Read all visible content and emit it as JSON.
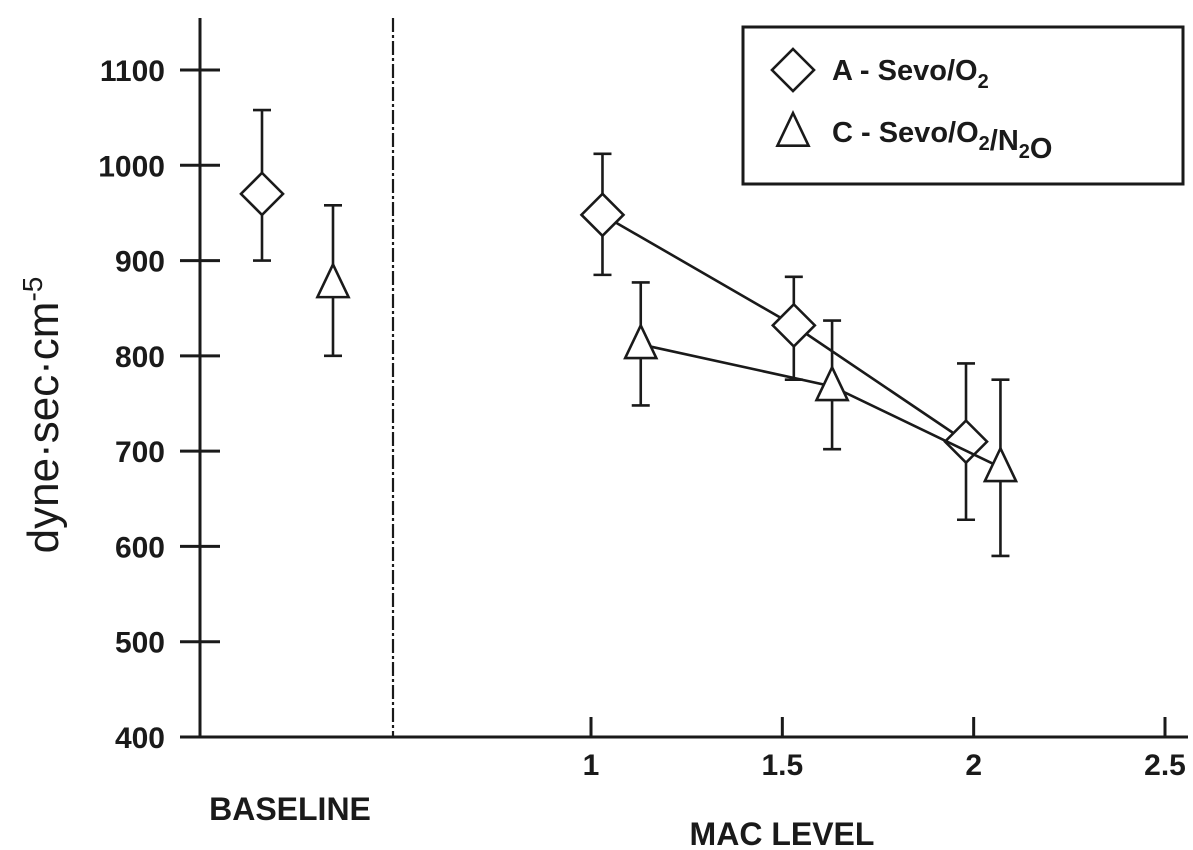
{
  "chart_data": {
    "type": "line",
    "ylabel": "dyne·sec·cm",
    "ylabel_sup": "-5",
    "xlabel": "MAC LEVEL",
    "baseline_label": "BASELINE",
    "ylim": [
      400,
      1100
    ],
    "y_ticks": [
      400,
      500,
      600,
      700,
      800,
      900,
      1000,
      1100
    ],
    "xlim": [
      0.5,
      2.5
    ],
    "x_ticks": [
      1,
      1.5,
      2,
      2.5
    ],
    "x_tick_labels": [
      "1",
      "1.5",
      "2",
      "2.5"
    ],
    "legend_placement": "top-right",
    "series": [
      {
        "name": "A - Sevo/O",
        "name_parts": [
          {
            "text": "A - Sevo/O",
            "sub": false
          },
          {
            "text": "2",
            "sub": true
          }
        ],
        "marker": "diamond",
        "baseline": {
          "y": 970,
          "err_low": 900,
          "err_high": 1058
        },
        "points": [
          {
            "x": 1.03,
            "y": 948,
            "err_low": 885,
            "err_high": 1012
          },
          {
            "x": 1.53,
            "y": 832,
            "err_low": 775,
            "err_high": 883
          },
          {
            "x": 1.98,
            "y": 710,
            "err_low": 628,
            "err_high": 792
          }
        ]
      },
      {
        "name": "C - Sevo/O/NO",
        "name_parts": [
          {
            "text": "C - Sevo/O",
            "sub": false
          },
          {
            "text": "2",
            "sub": true
          },
          {
            "text": "/N",
            "sub": false
          },
          {
            "text": "2",
            "sub": true
          },
          {
            "text": "O",
            "sub": false
          }
        ],
        "marker": "triangle",
        "baseline": {
          "y": 876,
          "err_low": 800,
          "err_high": 958
        },
        "points": [
          {
            "x": 1.13,
            "y": 812,
            "err_low": 748,
            "err_high": 877
          },
          {
            "x": 1.63,
            "y": 768,
            "err_low": 702,
            "err_high": 837
          },
          {
            "x": 2.07,
            "y": 683,
            "err_low": 590,
            "err_high": 775
          }
        ]
      }
    ]
  }
}
